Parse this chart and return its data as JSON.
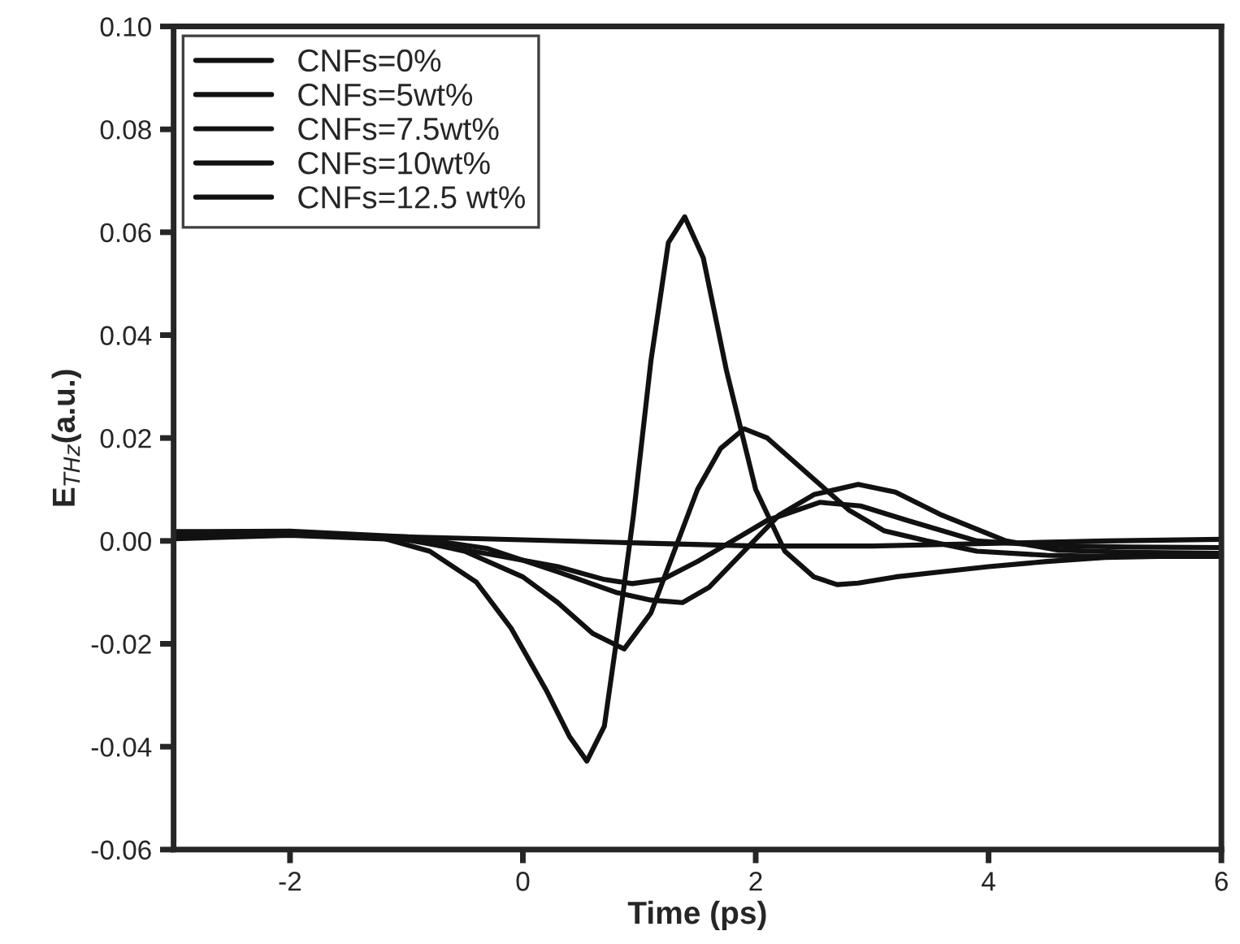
{
  "chart_data": {
    "type": "line",
    "xlabel": "Time (ps)",
    "ylabel": "E$_{THz}$(a.u.)",
    "xlim": [
      -3,
      6
    ],
    "ylim": [
      -0.06,
      0.1
    ],
    "xticks": [
      -2,
      0,
      2,
      4,
      6
    ],
    "yticks": [
      {
        "value": -0.06,
        "label": "-0.06"
      },
      {
        "value": -0.04,
        "label": "-0.04"
      },
      {
        "value": -0.02,
        "label": "-0.02"
      },
      {
        "value": 0.0,
        "label": "0.00"
      },
      {
        "value": 0.02,
        "label": "0.02"
      },
      {
        "value": 0.04,
        "label": "0.04"
      },
      {
        "value": 0.06,
        "label": "0.06"
      },
      {
        "value": 0.08,
        "label": "0.08"
      },
      {
        "value": 0.1,
        "label": "0.10"
      }
    ],
    "grid": false,
    "legend": "top left",
    "marker": "none",
    "line_style": "solid",
    "series": [
      {
        "name": "CNFs=0%",
        "color": "#111111",
        "x": [
          -3,
          -2,
          -1.2,
          -0.8,
          -0.4,
          -0.1,
          0.2,
          0.4,
          0.55,
          0.7,
          0.85,
          0.95,
          1.1,
          1.25,
          1.39,
          1.55,
          1.75,
          2.0,
          2.25,
          2.5,
          2.7,
          2.88,
          3.2,
          3.6,
          4.0,
          4.5,
          5.0,
          6.0
        ],
        "values": [
          0.001,
          0.0015,
          0.0005,
          -0.002,
          -0.008,
          -0.017,
          -0.029,
          -0.038,
          -0.0428,
          -0.036,
          -0.012,
          0.005,
          0.035,
          0.058,
          0.063,
          0.055,
          0.033,
          0.01,
          -0.002,
          -0.007,
          -0.0085,
          -0.0082,
          -0.007,
          -0.006,
          -0.005,
          -0.004,
          -0.0032,
          -0.0028
        ]
      },
      {
        "name": "CNFs=5wt%",
        "color": "#111111",
        "x": [
          -3,
          -2,
          -1,
          -0.5,
          0,
          0.3,
          0.6,
          0.87,
          1.1,
          1.3,
          1.5,
          1.7,
          1.9,
          2.1,
          2.4,
          2.8,
          3.1,
          3.47,
          3.9,
          4.5,
          5.0,
          6.0
        ],
        "values": [
          0.001,
          0.0015,
          0.0005,
          -0.002,
          -0.007,
          -0.012,
          -0.018,
          -0.021,
          -0.014,
          -0.002,
          0.01,
          0.018,
          0.0218,
          0.02,
          0.014,
          0.006,
          0.002,
          0.0,
          -0.002,
          -0.0028,
          -0.003,
          -0.003
        ]
      },
      {
        "name": "CNFs=7.5wt%",
        "color": "#111111",
        "x": [
          -3,
          -2,
          -1,
          -0.3,
          0.3,
          0.8,
          1.1,
          1.37,
          1.6,
          1.9,
          2.2,
          2.5,
          2.88,
          3.2,
          3.6,
          4.15,
          4.6,
          5.2,
          6.0
        ],
        "values": [
          0.0018,
          0.0019,
          0.0008,
          -0.0015,
          -0.006,
          -0.01,
          -0.0115,
          -0.012,
          -0.009,
          -0.002,
          0.005,
          0.009,
          0.011,
          0.0095,
          0.005,
          0.0,
          -0.0018,
          -0.0022,
          -0.0024
        ]
      },
      {
        "name": "CNFs=10wt%",
        "color": "#111111",
        "x": [
          -3,
          -2,
          -1,
          -0.3,
          0.3,
          0.7,
          0.94,
          1.2,
          1.5,
          1.8,
          2.1,
          2.55,
          2.9,
          3.3,
          3.9,
          4.5,
          5.2,
          6.0
        ],
        "values": [
          0.0004,
          0.0011,
          0.0002,
          -0.0025,
          -0.005,
          -0.0075,
          -0.0083,
          -0.0075,
          -0.004,
          0.0,
          0.004,
          0.0075,
          0.0068,
          0.004,
          0.0,
          -0.0009,
          -0.0012,
          -0.0013
        ]
      },
      {
        "name": "CNFs=12.5 wt%",
        "color": "#111111",
        "x": [
          -3,
          -2,
          -1,
          0,
          1,
          2,
          3,
          4,
          5,
          6
        ],
        "values": [
          0.001,
          0.0012,
          0.0008,
          0.0002,
          -0.0004,
          -0.001,
          -0.001,
          -0.0005,
          0.0,
          0.0003
        ]
      }
    ]
  }
}
